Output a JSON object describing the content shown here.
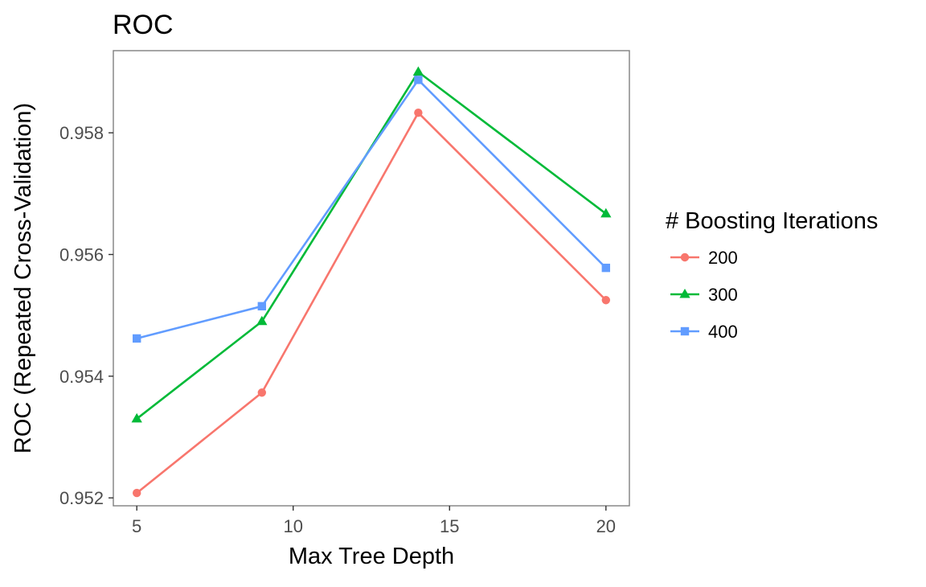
{
  "chart_data": {
    "type": "line",
    "title": "ROC",
    "xlabel": "Max Tree Depth",
    "ylabel": "ROC (Repeated Cross-Validation)",
    "x": [
      5,
      9,
      14,
      20
    ],
    "xticks": [
      5,
      10,
      15,
      20
    ],
    "xtick_labels": [
      "5",
      "10",
      "15",
      "20"
    ],
    "yticks": [
      0.952,
      0.954,
      0.956,
      0.958
    ],
    "ytick_labels": [
      "0.952",
      "0.954",
      "0.956",
      "0.958"
    ],
    "xlim": [
      4.25,
      20.75
    ],
    "ylim": [
      0.95187,
      0.95935
    ],
    "grid": false,
    "legend": {
      "title": "# Boosting Iterations",
      "position": "right"
    },
    "series": [
      {
        "name": "200",
        "marker": "circle",
        "color": "#F8766D",
        "values": [
          0.95208,
          0.95373,
          0.95833,
          0.95525
        ]
      },
      {
        "name": "300",
        "marker": "triangle",
        "color": "#00BA38",
        "values": [
          0.9533,
          0.9549,
          0.959,
          0.95667
        ]
      },
      {
        "name": "400",
        "marker": "square",
        "color": "#619CFF",
        "values": [
          0.95462,
          0.95515,
          0.95887,
          0.95578
        ]
      }
    ]
  }
}
